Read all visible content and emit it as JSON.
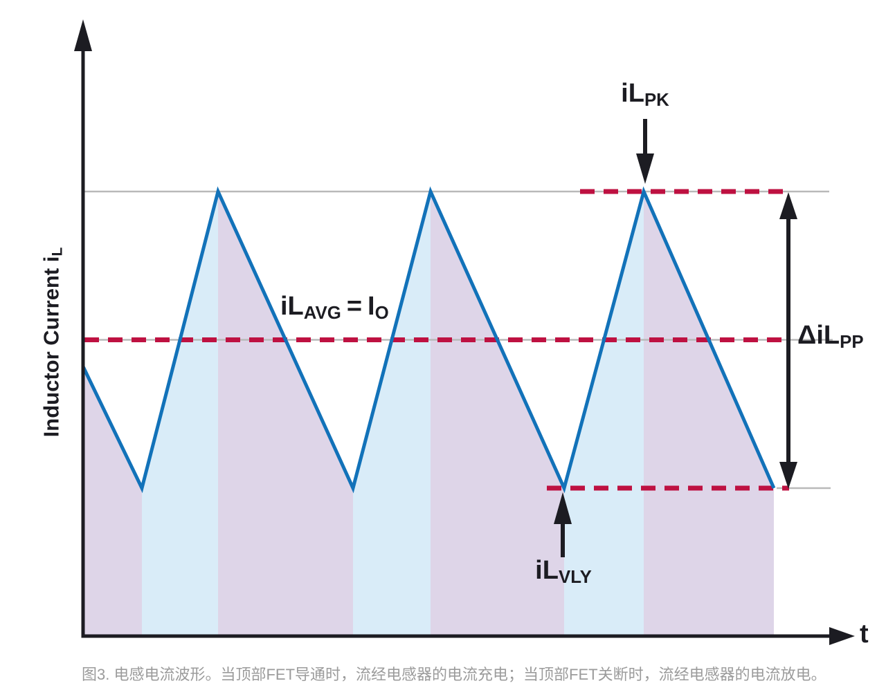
{
  "figure": {
    "x_axis_label": "t",
    "y_axis_label": {
      "base": "Inductor Current i",
      "sub": "L"
    },
    "caption": "图3. 电感电流波形。当顶部FET导通时，流经电感器的电流充电；当顶部FET关断时，流经电感器的电流放电。"
  },
  "labels": {
    "peak": {
      "base": "iL",
      "sub": "PK"
    },
    "valley": {
      "base": "iL",
      "sub": "VLY"
    },
    "avg": {
      "base1": "iL",
      "sub1": "AVG",
      "eq": "=",
      "base2": "I",
      "sub2": "O"
    },
    "ripple": {
      "base": "ΔiL",
      "sub": "PP"
    }
  },
  "colors": {
    "waveform_blue": "#1272b9",
    "fill_rising_lightblue": "#d9ecf8",
    "fill_falling_lavender": "#ded5e8",
    "dashed_crimson": "#be1141",
    "guide_gray": "#b9b9b9",
    "ink_black": "#1c1c22",
    "caption_gray": "#9b9b9b"
  },
  "chart_data": {
    "type": "line",
    "title": "",
    "xlabel": "t",
    "ylabel": "Inductor Current iL",
    "x": [
      0,
      0.085,
      0.195,
      0.39,
      0.502,
      0.695,
      0.81,
      0.998
    ],
    "series": [
      {
        "name": "inductor current iL",
        "values": [
          0.41,
          0,
          1,
          0,
          1,
          0,
          1,
          0
        ]
      }
    ],
    "levels": {
      "iL_PK": 1.0,
      "iL_AVG": 0.5,
      "iL_VLY": 0.0
    },
    "ripple": {
      "label": "ΔiL_PP",
      "value": 1.0
    },
    "annotations": [
      "iL_PK",
      "iL_AVG = I_O",
      "iL_VLY",
      "ΔiL_PP"
    ],
    "legend": "none",
    "grid": "three horizontal reference lines (peak, average, valley) drawn gray with crimson dashed overlays",
    "fill_rule": "rising (charge) segments filled light blue, falling (discharge) segments filled lavender, down to the time axis",
    "axis_ranges": {
      "x": [
        0,
        1.115
      ],
      "y_units": "normalized between valley=0 and peak=1"
    }
  }
}
